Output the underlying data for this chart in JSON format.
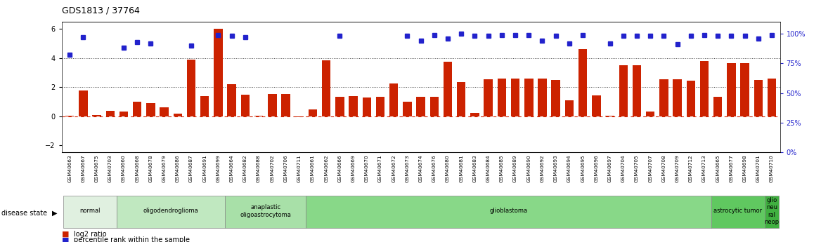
{
  "title": "GDS1813 / 37764",
  "samples": [
    "GSM40663",
    "GSM40667",
    "GSM40675",
    "GSM40703",
    "GSM40660",
    "GSM40668",
    "GSM40678",
    "GSM40679",
    "GSM40686",
    "GSM40687",
    "GSM40691",
    "GSM40699",
    "GSM40664",
    "GSM40682",
    "GSM40688",
    "GSM40702",
    "GSM40706",
    "GSM40711",
    "GSM40661",
    "GSM40662",
    "GSM40666",
    "GSM40669",
    "GSM40670",
    "GSM40671",
    "GSM40672",
    "GSM40673",
    "GSM40674",
    "GSM40676",
    "GSM40680",
    "GSM40681",
    "GSM40683",
    "GSM40684",
    "GSM40685",
    "GSM40689",
    "GSM40690",
    "GSM40692",
    "GSM40693",
    "GSM40694",
    "GSM40695",
    "GSM40696",
    "GSM40697",
    "GSM40704",
    "GSM40705",
    "GSM40707",
    "GSM40708",
    "GSM40709",
    "GSM40712",
    "GSM40713",
    "GSM40665",
    "GSM40677",
    "GSM40698",
    "GSM40701",
    "GSM40710"
  ],
  "log2_ratio": [
    0.05,
    1.75,
    0.1,
    0.35,
    0.3,
    1.0,
    0.9,
    0.6,
    0.15,
    3.9,
    1.4,
    6.0,
    2.2,
    1.5,
    0.05,
    1.55,
    1.55,
    -0.05,
    0.45,
    3.85,
    1.35,
    1.4,
    1.3,
    1.35,
    2.25,
    1.0,
    1.35,
    1.35,
    3.75,
    2.35,
    0.2,
    2.55,
    2.6,
    2.6,
    2.6,
    2.6,
    2.5,
    1.1,
    4.6,
    1.45,
    0.05,
    3.5,
    3.5,
    0.3,
    2.55,
    2.55,
    2.45,
    3.8,
    1.35,
    3.65,
    3.65,
    2.5,
    2.6
  ],
  "percentile_pct": [
    82,
    97,
    0,
    0,
    88,
    93,
    92,
    0,
    0,
    90,
    0,
    99,
    98,
    97,
    0,
    0,
    0,
    0,
    0,
    0,
    98,
    0,
    0,
    0,
    0,
    98,
    94,
    99,
    96,
    100,
    98,
    98,
    99,
    99,
    99,
    94,
    98,
    92,
    99,
    0,
    92,
    98,
    98,
    98,
    98,
    91,
    98,
    99,
    98,
    98,
    98,
    96,
    99
  ],
  "disease_groups": [
    {
      "label": "normal",
      "start": 0,
      "end": 4,
      "color": "#e0f0e0"
    },
    {
      "label": "oligodendroglioma",
      "start": 4,
      "end": 12,
      "color": "#c0e8c0"
    },
    {
      "label": "anaplastic\noligoastrocytoma",
      "start": 12,
      "end": 18,
      "color": "#a8e0a8"
    },
    {
      "label": "glioblastoma",
      "start": 18,
      "end": 48,
      "color": "#88d888"
    },
    {
      "label": "astrocytic tumor",
      "start": 48,
      "end": 52,
      "color": "#60c860"
    },
    {
      "label": "glio\nneu\nral\nneop",
      "start": 52,
      "end": 53,
      "color": "#40b040"
    }
  ],
  "ylim_left": [
    -2.5,
    6.5
  ],
  "ylim_right": [
    0,
    110
  ],
  "yticks_left": [
    -2,
    0,
    2,
    4,
    6
  ],
  "yticks_right": [
    0,
    25,
    50,
    75,
    100
  ],
  "hline_zero_color": "#cc2200",
  "hline_dotted_values": [
    2,
    4
  ],
  "bar_color": "#cc2200",
  "dot_color": "#2222cc",
  "background_color": "#ffffff"
}
